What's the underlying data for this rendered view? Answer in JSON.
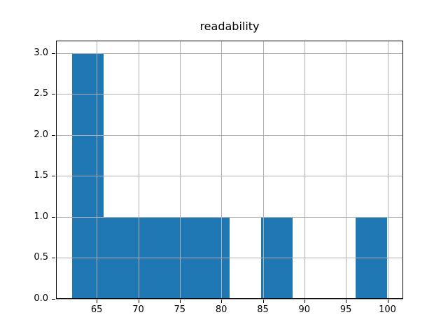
{
  "figure": {
    "background": "#ffffff"
  },
  "chart_data": {
    "type": "bar",
    "subtype": "histogram",
    "title": "readability",
    "xlabel": "",
    "ylabel": "",
    "bin_edges": [
      62.0,
      65.8,
      69.6,
      73.4,
      77.2,
      81.0,
      84.8,
      88.6,
      92.4,
      96.2,
      100.0
    ],
    "counts": [
      3,
      1,
      1,
      1,
      1,
      0,
      1,
      0,
      0,
      1
    ],
    "xticks": [
      65,
      70,
      75,
      80,
      85,
      90,
      95,
      100
    ],
    "xtick_labels": [
      "65",
      "70",
      "75",
      "80",
      "85",
      "90",
      "95",
      "100"
    ],
    "ytick_labels": [
      "0.0",
      "0.5",
      "1.0",
      "1.5",
      "2.0",
      "2.5",
      "3.0"
    ],
    "xlim": [
      60.1,
      101.9
    ],
    "ylim": [
      0,
      3.15
    ],
    "grid": true,
    "grid_above_bars": true,
    "legend_position": "none",
    "bar_color": "#1f77b4",
    "grid_color": "#b0b0b0",
    "spine_color": "#000000",
    "tick_color": "#000000",
    "text_color": "#000000"
  }
}
